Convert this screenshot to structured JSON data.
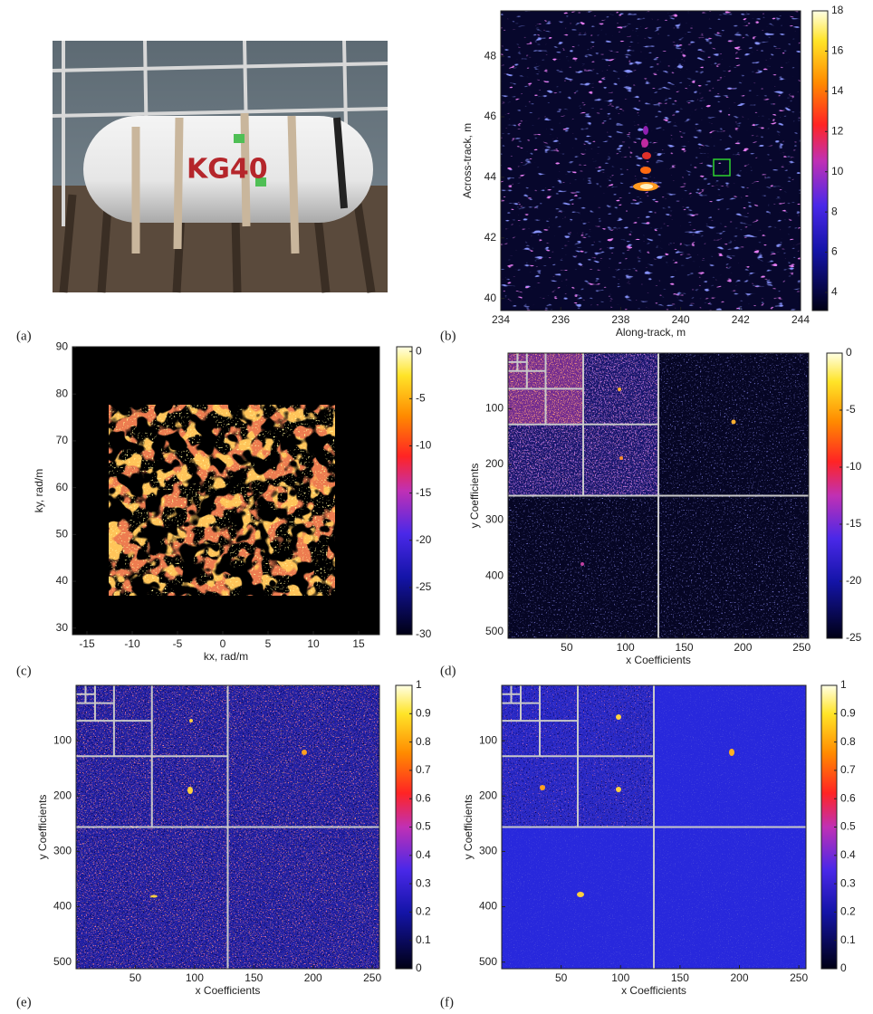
{
  "chart_data": [
    {
      "type": "image",
      "panel_label": "(a)",
      "photo_text": "KG40"
    },
    {
      "type": "heatmap",
      "panel_label": "(b)",
      "x_label": "Along-track, m",
      "y_label": "Across-track, m",
      "xlim": [
        234,
        244
      ],
      "xticks": [
        234,
        236,
        238,
        240,
        242,
        244
      ],
      "ylim": [
        39.6,
        49.5
      ],
      "yticks": [
        40,
        42,
        44,
        46,
        48
      ],
      "clim": [
        3.1,
        18
      ],
      "cticks": [
        4,
        6,
        8,
        10,
        12,
        14,
        16,
        18
      ]
    },
    {
      "type": "heatmap",
      "panel_label": "(c)",
      "x_label": "kx, rad/m",
      "y_label": "ky, rad/m",
      "xlim": [
        -16.6,
        17.3
      ],
      "xticks": [
        -15,
        -10,
        -5,
        0,
        5,
        10,
        15
      ],
      "ylim": [
        28.6,
        90.1
      ],
      "yticks": [
        30,
        40,
        50,
        60,
        70,
        80,
        90
      ],
      "clim": [
        -30,
        0.5
      ],
      "cticks": [
        0,
        -5,
        -10,
        -15,
        -20,
        -25,
        -30
      ]
    },
    {
      "type": "heatmap",
      "panel_label": "(d)",
      "x_label": "x Coefficients",
      "y_label": "y Coefficients",
      "xlim": [
        0,
        256
      ],
      "xticks": [
        50,
        100,
        150,
        200,
        250
      ],
      "ylim": [
        512,
        0
      ],
      "yticks": [
        100,
        200,
        300,
        400,
        500
      ],
      "clim": [
        -25,
        0
      ],
      "cticks": [
        0,
        -5,
        -10,
        -15,
        -20,
        -25
      ]
    },
    {
      "type": "heatmap",
      "panel_label": "(e)",
      "x_label": "x Coefficients",
      "y_label": "y Coefficients",
      "xlim": [
        0,
        256
      ],
      "xticks": [
        50,
        100,
        150,
        200,
        250
      ],
      "ylim": [
        512,
        0
      ],
      "yticks": [
        100,
        200,
        300,
        400,
        500
      ],
      "clim": [
        0,
        1
      ],
      "cticks": [
        0,
        0.1,
        0.2,
        0.3,
        0.4,
        0.5,
        0.6,
        0.7,
        0.8,
        0.9,
        1
      ]
    },
    {
      "type": "heatmap",
      "panel_label": "(f)",
      "x_label": "x Coefficients",
      "y_label": "y Coefficients",
      "xlim": [
        0,
        256
      ],
      "xticks": [
        50,
        100,
        150,
        200,
        250
      ],
      "ylim": [
        512,
        0
      ],
      "yticks": [
        100,
        200,
        300,
        400,
        500
      ],
      "clim": [
        0,
        1
      ],
      "cticks": [
        0,
        0.1,
        0.2,
        0.3,
        0.4,
        0.5,
        0.6,
        0.7,
        0.8,
        0.9,
        1
      ]
    }
  ]
}
